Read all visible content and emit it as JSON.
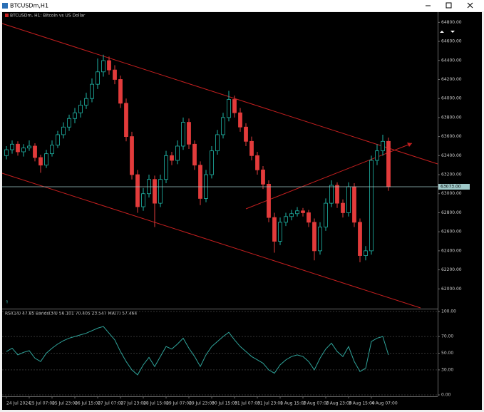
{
  "window_title": "BTCUSDm,H1",
  "chart_data": {
    "type": "candlestick",
    "title": "BTCUSDm, H1: Bitcoin vs US Dollar",
    "up_color": "#1fb5a6",
    "down_color": "#e23b3b",
    "categories": [
      "24 Jul 2024",
      null,
      null,
      null,
      "25 Jul 07:00",
      null,
      null,
      null,
      "25 Jul 23:00",
      null,
      null,
      null,
      "26 Jul 15:00",
      null,
      null,
      null,
      "27 Jul 07:00",
      null,
      null,
      null,
      "27 Jul 23:00",
      null,
      null,
      null,
      "28 Jul 15:00",
      null,
      null,
      null,
      "29 Jul 07:00",
      null,
      null,
      null,
      "29 Jul 23:00",
      null,
      null,
      null,
      "30 Jul 15:00",
      null,
      null,
      null,
      "31 Jul 07:00",
      null,
      null,
      null,
      "31 Jul 23:00",
      null,
      null,
      null,
      "1 Aug 15:00",
      null,
      null,
      null,
      "2 Aug 07:00",
      null,
      null,
      null,
      "2 Aug 23:00",
      null,
      null,
      null,
      "3 Aug 15:00",
      null,
      null,
      null,
      "4 Aug 07:00",
      null,
      null,
      null
    ],
    "candles": [
      [
        63400,
        63500,
        63360,
        63462
      ],
      [
        63462,
        63560,
        63420,
        63520
      ],
      [
        63520,
        63550,
        63400,
        63440
      ],
      [
        63440,
        63520,
        63390,
        63480
      ],
      [
        63480,
        63560,
        63450,
        63500
      ],
      [
        63500,
        63530,
        63340,
        63380
      ],
      [
        63380,
        63410,
        63220,
        63300
      ],
      [
        63300,
        63460,
        63270,
        63420
      ],
      [
        63420,
        63560,
        63390,
        63510
      ],
      [
        63510,
        63660,
        63480,
        63620
      ],
      [
        63620,
        63750,
        63580,
        63700
      ],
      [
        63700,
        63830,
        63660,
        63790
      ],
      [
        63790,
        63900,
        63740,
        63850
      ],
      [
        63850,
        63980,
        63800,
        63930
      ],
      [
        63930,
        64060,
        63890,
        64000
      ],
      [
        64000,
        64210,
        63960,
        64150
      ],
      [
        64150,
        64420,
        64100,
        64280
      ],
      [
        64280,
        64460,
        64230,
        64398
      ],
      [
        64398,
        64440,
        64250,
        64300
      ],
      [
        64300,
        64350,
        64150,
        64200
      ],
      [
        64200,
        64240,
        63900,
        63950
      ],
      [
        63950,
        64000,
        63550,
        63600
      ],
      [
        63600,
        63650,
        63150,
        63200
      ],
      [
        63200,
        63250,
        62800,
        62863
      ],
      [
        62863,
        63060,
        62820,
        63000
      ],
      [
        63000,
        63200,
        62960,
        63150
      ],
      [
        63150,
        63190,
        62650,
        62900
      ],
      [
        62900,
        63200,
        62860,
        63150
      ],
      [
        63150,
        63450,
        63110,
        63400
      ],
      [
        63400,
        63440,
        63300,
        63350
      ],
      [
        63350,
        63560,
        63310,
        63500
      ],
      [
        63500,
        63800,
        63460,
        63750
      ],
      [
        63750,
        63790,
        63470,
        63520
      ],
      [
        63520,
        63560,
        63250,
        63300
      ],
      [
        63300,
        63340,
        62880,
        62950
      ],
      [
        62950,
        63250,
        62910,
        63200
      ],
      [
        63200,
        63500,
        63160,
        63450
      ],
      [
        63450,
        63670,
        63410,
        63620
      ],
      [
        63620,
        63850,
        63580,
        63800
      ],
      [
        63800,
        64080,
        63760,
        63990
      ],
      [
        63990,
        64030,
        63800,
        63850
      ],
      [
        63850,
        63900,
        63650,
        63700
      ],
      [
        63700,
        63740,
        63500,
        63550
      ],
      [
        63550,
        63600,
        63350,
        63400
      ],
      [
        63400,
        63440,
        63200,
        63250
      ],
      [
        63250,
        63290,
        63050,
        63100
      ],
      [
        63100,
        63140,
        62700,
        62750
      ],
      [
        62750,
        62800,
        62380,
        62500
      ],
      [
        62500,
        62750,
        62460,
        62700
      ],
      [
        62700,
        62800,
        62660,
        62760
      ],
      [
        62760,
        62830,
        62720,
        62790
      ],
      [
        62790,
        62860,
        62760,
        62820
      ],
      [
        62820,
        62850,
        62760,
        62800
      ],
      [
        62800,
        62830,
        62650,
        62700
      ],
      [
        62700,
        62740,
        62300,
        62400
      ],
      [
        62400,
        62700,
        62360,
        62650
      ],
      [
        62650,
        62950,
        62610,
        62900
      ],
      [
        62900,
        63140,
        62860,
        63088
      ],
      [
        63088,
        63120,
        62850,
        62900
      ],
      [
        62900,
        62940,
        62750,
        62800
      ],
      [
        62800,
        63120,
        62760,
        63073
      ],
      [
        63073,
        63110,
        62650,
        62700
      ],
      [
        62700,
        62740,
        62280,
        62350
      ],
      [
        62350,
        62450,
        62300,
        62400
      ],
      [
        62400,
        63400,
        62360,
        63350
      ],
      [
        63350,
        63520,
        63300,
        63450
      ],
      [
        63450,
        63620,
        63400,
        63550
      ],
      [
        63550,
        63590,
        63030,
        63073
      ]
    ],
    "ylim": [
      61800,
      64900
    ],
    "yticks": [
      {
        "value": 62000,
        "label": "62000.00"
      },
      {
        "value": 62200,
        "label": "62200.00"
      },
      {
        "value": 62400,
        "label": "62400.00"
      },
      {
        "value": 62600,
        "label": "62600.00"
      },
      {
        "value": 62800,
        "label": "62800.00"
      },
      {
        "value": 63000,
        "label": "63000.00"
      },
      {
        "value": 63200,
        "label": "63200.00"
      },
      {
        "value": 63400,
        "label": "63400.00"
      },
      {
        "value": 63600,
        "label": "63600.00"
      },
      {
        "value": 63800,
        "label": "63800.00"
      },
      {
        "value": 64000,
        "label": "64000.00"
      },
      {
        "value": 64200,
        "label": "64200.00"
      },
      {
        "value": 64400,
        "label": "64400.00"
      },
      {
        "value": 64600,
        "label": "64600.00"
      },
      {
        "value": 64800,
        "label": "64800.00"
      }
    ],
    "price_line": {
      "value": 63073,
      "label": "63073.00",
      "color": "#9fc9c9"
    },
    "indicator": {
      "title": "RSI(14) 47.85 Bands(34) 56.101 70.405 23.547 MA(7) 57.464",
      "color": "#2fa39a",
      "values": [
        52,
        56,
        48,
        51,
        53,
        44,
        40,
        50,
        56,
        61,
        65,
        68,
        70,
        72,
        74,
        77,
        80,
        82,
        74,
        66,
        52,
        40,
        30,
        24,
        36,
        45,
        34,
        46,
        58,
        55,
        61,
        68,
        56,
        46,
        34,
        48,
        58,
        64,
        70,
        75,
        66,
        58,
        52,
        46,
        42,
        38,
        30,
        26,
        36,
        42,
        46,
        48,
        46,
        40,
        30,
        44,
        55,
        62,
        52,
        46,
        58,
        40,
        28,
        32,
        64,
        68,
        70,
        47.85
      ],
      "ylim": [
        0,
        100
      ],
      "yticks": [
        {
          "value": 100,
          "label": "100.00"
        },
        {
          "value": 70,
          "label": "70.00"
        },
        {
          "value": 50,
          "label": "50.00"
        },
        {
          "value": 30,
          "label": "30.00"
        },
        {
          "value": 0,
          "label": "0.00"
        }
      ]
    }
  }
}
